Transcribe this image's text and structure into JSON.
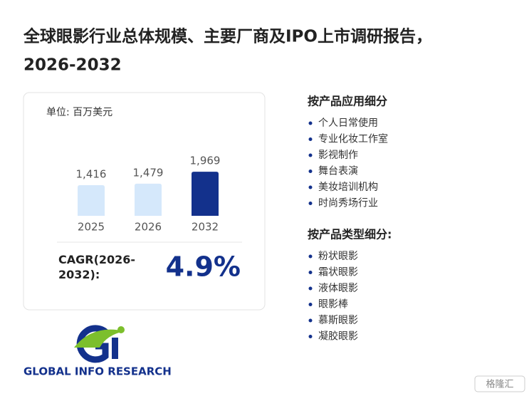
{
  "header": {
    "title_line1": "全球眼影行业总体规模、主要厂商及IPO上市调研报告，",
    "title_line2": "2026-2032"
  },
  "chart_data": {
    "type": "bar",
    "unit": "单位: 百万美元",
    "categories": [
      "2025",
      "2026",
      "2032"
    ],
    "series": [
      {
        "values": [
          1416,
          1479,
          1969
        ],
        "value_labels": [
          "1,416",
          "1,479",
          "1,969"
        ],
        "colors": [
          "#d5e8fb",
          "#d5e8fb",
          "#13318c"
        ]
      }
    ],
    "ylim": [
      166,
      2000
    ]
  },
  "cagr": {
    "label": "CAGR(2026-2032):",
    "value": "4.9%"
  },
  "segments": [
    {
      "heading": "按产品应用细分",
      "items": [
        "个人日常使用",
        "专业化妆工作室",
        "影视制作",
        "舞台表演",
        "美妆培训机构",
        "时尚秀场行业"
      ]
    },
    {
      "heading": "按产品类型细分:",
      "items": [
        "粉状眼影",
        "霜状眼影",
        "液体眼影",
        "眼影棒",
        "慕斯眼影",
        "凝胶眼影"
      ]
    }
  ],
  "logo": {
    "text": "GLOBAL INFO RESEARCH"
  },
  "badge": {
    "text": "格隆汇"
  }
}
